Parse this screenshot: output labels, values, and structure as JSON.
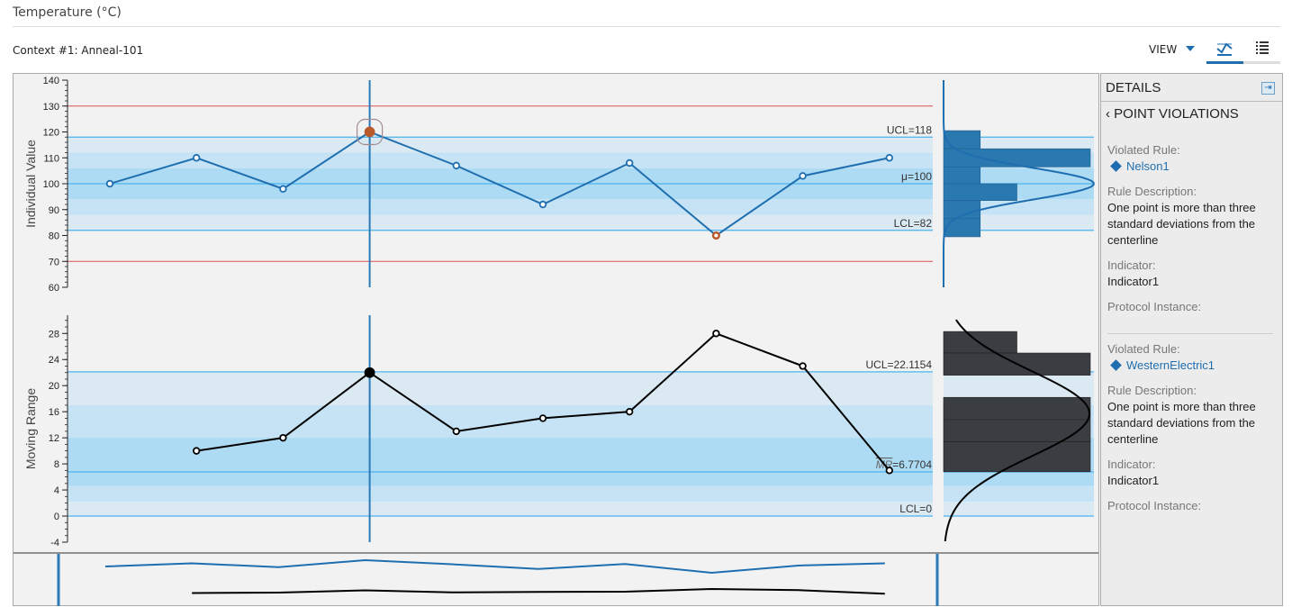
{
  "header": {
    "title": "Temperature (°C)",
    "context": "Context #1: Anneal-101"
  },
  "toolbar": {
    "view_label": "VIEW",
    "icons": [
      "chart-icon",
      "list-icon"
    ],
    "active_tab": "chart"
  },
  "colors": {
    "accent": "#1f6fb0",
    "violation": "#b85a2a",
    "spec_limit": "#d9534f",
    "control_line": "#4db3ee",
    "mr_line": "#000000"
  },
  "chart_data": [
    {
      "type": "line",
      "ylabel": "Individual Value",
      "ylim": [
        60,
        140
      ],
      "yticks": [
        140,
        130,
        120,
        110,
        100,
        90,
        80,
        70,
        60
      ],
      "values": [
        100,
        110,
        98,
        120,
        107,
        92,
        108,
        80,
        103,
        110
      ],
      "violations": [
        3,
        7
      ],
      "selected_index": 3,
      "spec_limits": [
        130,
        70
      ],
      "ucl": 118,
      "center": 100,
      "lcl": 82,
      "labels": {
        "ucl": "UCL=118",
        "center": "μ=100",
        "lcl": "LCL=82"
      },
      "histogram": {
        "bins": [
          [
            113.5,
            120.5
          ],
          [
            106.5,
            113.5
          ],
          [
            100,
            106.5
          ],
          [
            93.5,
            100
          ],
          [
            86.5,
            93.5
          ],
          [
            79.5,
            86.5
          ]
        ],
        "counts": [
          1,
          4,
          1,
          2,
          1,
          1
        ]
      }
    },
    {
      "type": "line",
      "ylabel": "Moving Range",
      "ylim": [
        -4,
        30.8
      ],
      "yticks": [
        28,
        24,
        20,
        16,
        12,
        8,
        4,
        0,
        -4
      ],
      "values": [
        null,
        10,
        12,
        22,
        13,
        15,
        16,
        28,
        23,
        7
      ],
      "selected_index": 3,
      "ucl": 22.1154,
      "center": 6.7704,
      "lcl": 0,
      "labels": {
        "ucl": "UCL=22.1154",
        "center_symbol": "MR",
        "center": "=6.7704",
        "lcl": "LCL=0"
      },
      "histogram": {
        "bins": [
          [
            25,
            28.3
          ],
          [
            21.6,
            25
          ],
          [
            18.2,
            21.6
          ],
          [
            14.8,
            18.2
          ],
          [
            11.4,
            14.8
          ],
          [
            6.8,
            11.4
          ]
        ],
        "counts": [
          2,
          4,
          0,
          4,
          4,
          4
        ]
      }
    }
  ],
  "details": {
    "title": "DETAILS",
    "back_label": "POINT VIOLATIONS",
    "violations": [
      {
        "rule_label": "Violated Rule:",
        "rule": "Nelson1",
        "desc_label": "Rule Description:",
        "desc": "One point is more than three standard deviations from the centerline",
        "indicator_label": "Indicator:",
        "indicator": "Indicator1",
        "protocol_label": "Protocol Instance:"
      },
      {
        "rule_label": "Violated Rule:",
        "rule": "WesternElectric1",
        "desc_label": "Rule Description:",
        "desc": "One point is more than three standard deviations from the centerline",
        "indicator_label": "Indicator:",
        "indicator": "Indicator1",
        "protocol_label": "Protocol Instance:"
      }
    ]
  }
}
